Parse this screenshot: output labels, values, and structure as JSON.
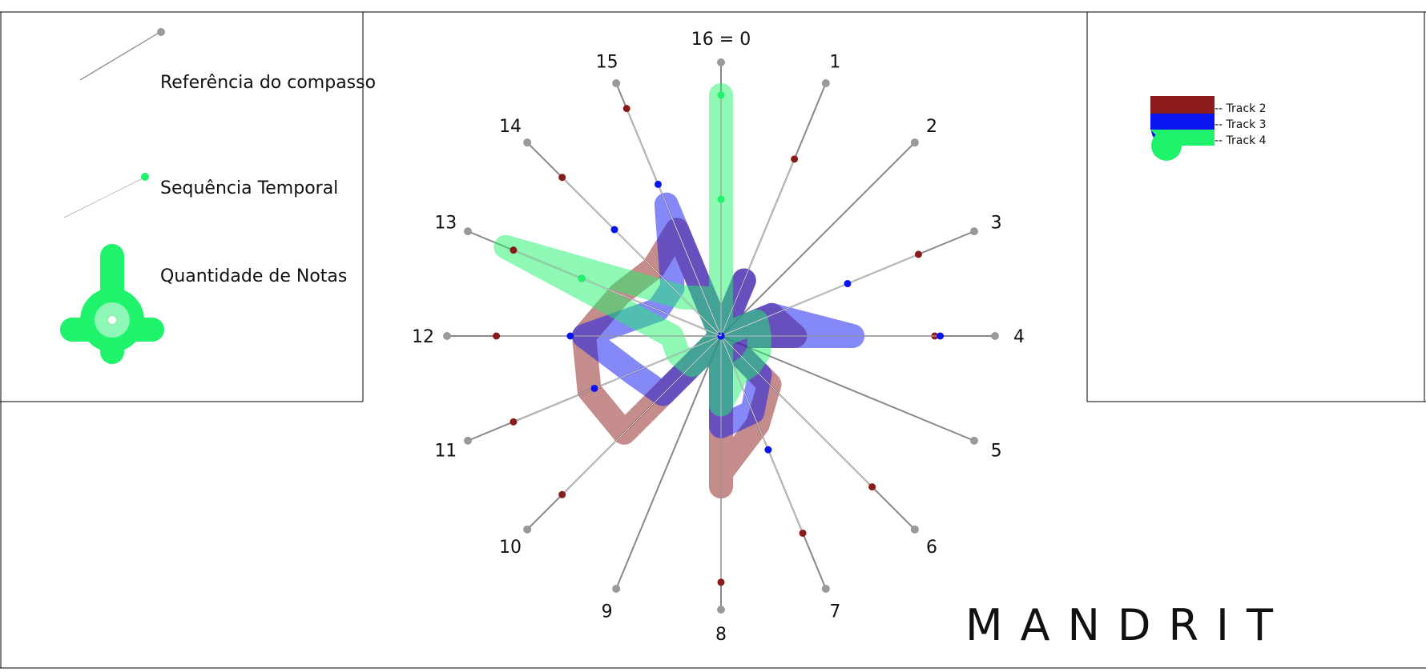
{
  "legend_left": {
    "reference_label": "Referência do compasso",
    "sequence_label": "Sequência Temporal",
    "notes_label": "Quantidade de Notas",
    "sequence_color": "#1ff26b"
  },
  "tracks_legend": [
    {
      "name": "-- Track 2",
      "color": "#8b1a1a"
    },
    {
      "name": "-- Track 3",
      "color": "#0a14f0"
    },
    {
      "name": "-- Track 4",
      "color": "#1ff26b"
    }
  ],
  "brand": "MANDRIT",
  "radial": {
    "beats": 16,
    "reference_color": "#888888",
    "labels": [
      "16 = 0",
      "1",
      "2",
      "3",
      "4",
      "5",
      "6",
      "7",
      "8",
      "9",
      "10",
      "11",
      "12",
      "13",
      "14",
      "15"
    ],
    "tracks": [
      {
        "name": "Track 2",
        "color": "#8b1a1a",
        "dots": [
          [
            1,
            0.7
          ],
          [
            2,
            0.0
          ],
          [
            3,
            0.78
          ],
          [
            4,
            0.78
          ],
          [
            5,
            0.0
          ],
          [
            6,
            0.78
          ],
          [
            7,
            0.78
          ],
          [
            8,
            0.9
          ],
          [
            9,
            0.0
          ],
          [
            10,
            0.82
          ],
          [
            11,
            0.82
          ],
          [
            12,
            0.82
          ],
          [
            13,
            0.82
          ],
          [
            14,
            0.82
          ],
          [
            15,
            0.9
          ]
        ],
        "path": [
          [
            0,
            0.0
          ],
          [
            1,
            0.22
          ],
          [
            2,
            0.0
          ],
          [
            3,
            0.2
          ],
          [
            4,
            0.27
          ],
          [
            5,
            0.0
          ],
          [
            6,
            0.25
          ],
          [
            7,
            0.35
          ],
          [
            8,
            0.5
          ],
          [
            8,
            0.55
          ],
          [
            9,
            0.0
          ],
          [
            10,
            0.5
          ],
          [
            11,
            0.52
          ],
          [
            12,
            0.5
          ],
          [
            13,
            0.4
          ],
          [
            14,
            0.35
          ],
          [
            15,
            0.42
          ],
          [
            0,
            0.0
          ]
        ]
      },
      {
        "name": "Track 3",
        "color": "#0a14f0",
        "dots": [
          [
            1,
            0.0
          ],
          [
            2,
            0.0
          ],
          [
            3,
            0.5
          ],
          [
            4,
            0.8
          ],
          [
            5,
            0.0
          ],
          [
            6,
            0.0
          ],
          [
            7,
            0.45
          ],
          [
            8,
            0.0
          ],
          [
            9,
            0.0
          ],
          [
            10,
            0.0
          ],
          [
            11,
            0.5
          ],
          [
            12,
            0.55
          ],
          [
            13,
            0.55
          ],
          [
            14,
            0.55
          ],
          [
            15,
            0.6
          ]
        ],
        "path": [
          [
            0,
            0.0
          ],
          [
            1,
            0.22
          ],
          [
            2,
            0.0
          ],
          [
            3,
            0.2
          ],
          [
            4,
            0.48
          ],
          [
            5,
            0.0
          ],
          [
            6,
            0.2
          ],
          [
            7,
            0.3
          ],
          [
            8,
            0.33
          ],
          [
            9,
            0.0
          ],
          [
            10,
            0.3
          ],
          [
            11,
            0.35
          ],
          [
            12,
            0.5
          ],
          [
            13,
            0.25
          ],
          [
            14,
            0.25
          ],
          [
            15,
            0.52
          ],
          [
            0,
            0.0
          ]
        ]
      },
      {
        "name": "Track 4",
        "color": "#1ff26b",
        "dots": [
          [
            0,
            0.88
          ],
          [
            0,
            0.5
          ],
          [
            13,
            0.55
          ]
        ],
        "path": [
          [
            0,
            0.0
          ],
          [
            0,
            0.88
          ],
          [
            0,
            0.5
          ],
          [
            2,
            0.0
          ],
          [
            3,
            0.14
          ],
          [
            4,
            0.14
          ],
          [
            5,
            0.15
          ],
          [
            6,
            0.15
          ],
          [
            7,
            0.15
          ],
          [
            8,
            0.25
          ],
          [
            9,
            0.0
          ],
          [
            10,
            0.15
          ],
          [
            11,
            0.17
          ],
          [
            12,
            0.18
          ],
          [
            13,
            0.85
          ],
          [
            14,
            0.2
          ],
          [
            15,
            0.15
          ],
          [
            0,
            0.0
          ]
        ]
      }
    ]
  }
}
